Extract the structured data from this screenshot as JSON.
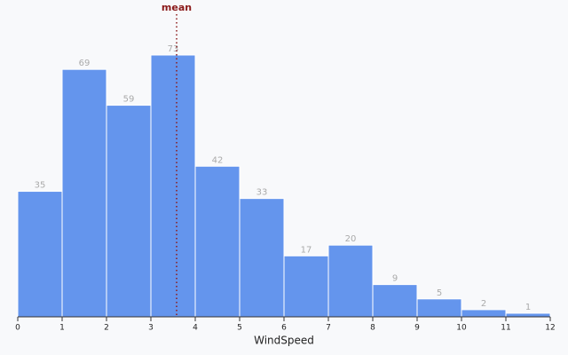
{
  "chart_data": {
    "type": "histogram",
    "x_label": "WindSpeed",
    "bins": [
      0,
      1,
      2,
      3,
      4,
      5,
      6,
      7,
      8,
      9,
      10,
      11,
      12
    ],
    "values": [
      35,
      69,
      59,
      73,
      42,
      33,
      17,
      20,
      9,
      5,
      2,
      1
    ],
    "color": "#6495ed",
    "xlim": [
      0,
      12
    ],
    "xticks": [
      0,
      1,
      2,
      3,
      4,
      5,
      6,
      7,
      8,
      9,
      10,
      11,
      12
    ],
    "mean": {
      "label": "mean",
      "value": 3.58,
      "color": "#8b1a1a"
    }
  }
}
